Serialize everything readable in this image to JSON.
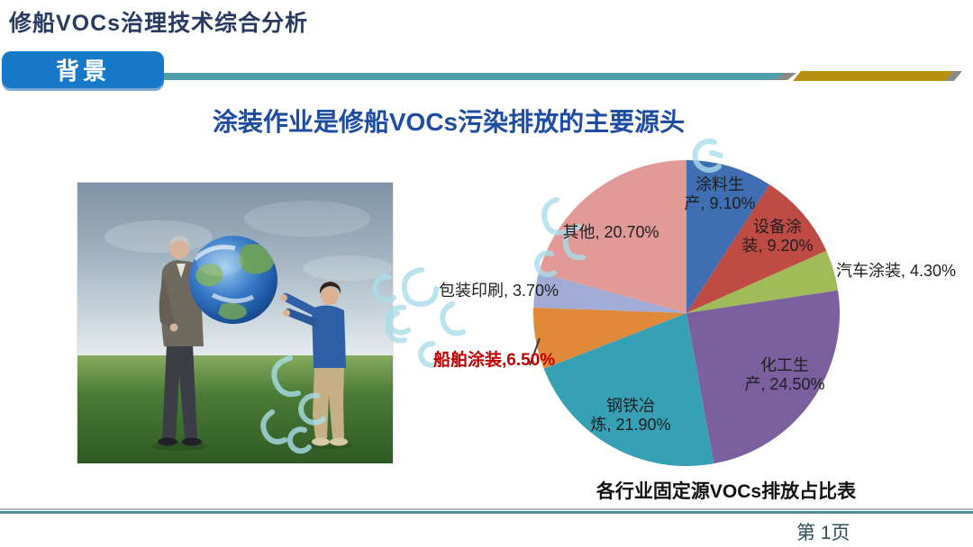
{
  "page": {
    "header_title": "修船VOCs治理技术综合分析",
    "section_badge": "背景",
    "slide_title": "涂装作业是修船VOCs污染排放的主要源头",
    "page_number": "第 1页"
  },
  "photo": {
    "description": "老人将地球递给孩子（草地场景照片）"
  },
  "colors": {
    "header_title": "#263A62",
    "badge_bg": "#1779C8",
    "divider_teal": "#4E9FA8",
    "divider_gold": "#B8900F",
    "divider_gray": "#8A8A8A",
    "slide_title_blue": "#1D4DA1",
    "highlight_red": "#C00000",
    "footer_text": "#2F4F5A",
    "watermark_cyan": "#A9DDEA"
  },
  "chart_data": {
    "type": "pie",
    "title": "各行业固定源VOCs排放占比表",
    "unit": "%",
    "start_angle_deg": 0,
    "direction": "clockwise",
    "legend_position": "none",
    "slices": [
      {
        "id": "paint-production",
        "name": "涂料生产",
        "value": 9.1,
        "color": "#3F6FB2",
        "label": [
          "涂料生",
          "产, 9.10%"
        ]
      },
      {
        "id": "equipment-coating",
        "name": "设备涂装",
        "value": 9.2,
        "color": "#BE4B44",
        "label": [
          "设备涂",
          "装, 9.20%"
        ]
      },
      {
        "id": "auto-coating",
        "name": "汽车涂装",
        "value": 4.3,
        "color": "#9FBC58",
        "label": [
          "汽车涂装, 4.30%"
        ]
      },
      {
        "id": "chemical-production",
        "name": "化工生产",
        "value": 24.5,
        "color": "#7B5F9E",
        "label": [
          "化工生",
          "产, 24.50%"
        ]
      },
      {
        "id": "steel-smelting",
        "name": "钢铁冶炼",
        "value": 21.9,
        "color": "#36A0B5",
        "label": [
          "钢铁冶",
          "炼, 21.90%"
        ]
      },
      {
        "id": "ship-coating",
        "name": "船舶涂装",
        "value": 6.5,
        "color": "#E08A39",
        "label": [
          "船舶涂装,6.50%"
        ],
        "highlight": true
      },
      {
        "id": "packaging-printing",
        "name": "包装印刷",
        "value": 3.7,
        "color": "#A2ABD4",
        "label": [
          "包装印刷, 3.70%"
        ]
      },
      {
        "id": "other",
        "name": "其他",
        "value": 20.7,
        "color": "#E29A96",
        "label": [
          "其他, 20.70%"
        ]
      }
    ]
  }
}
